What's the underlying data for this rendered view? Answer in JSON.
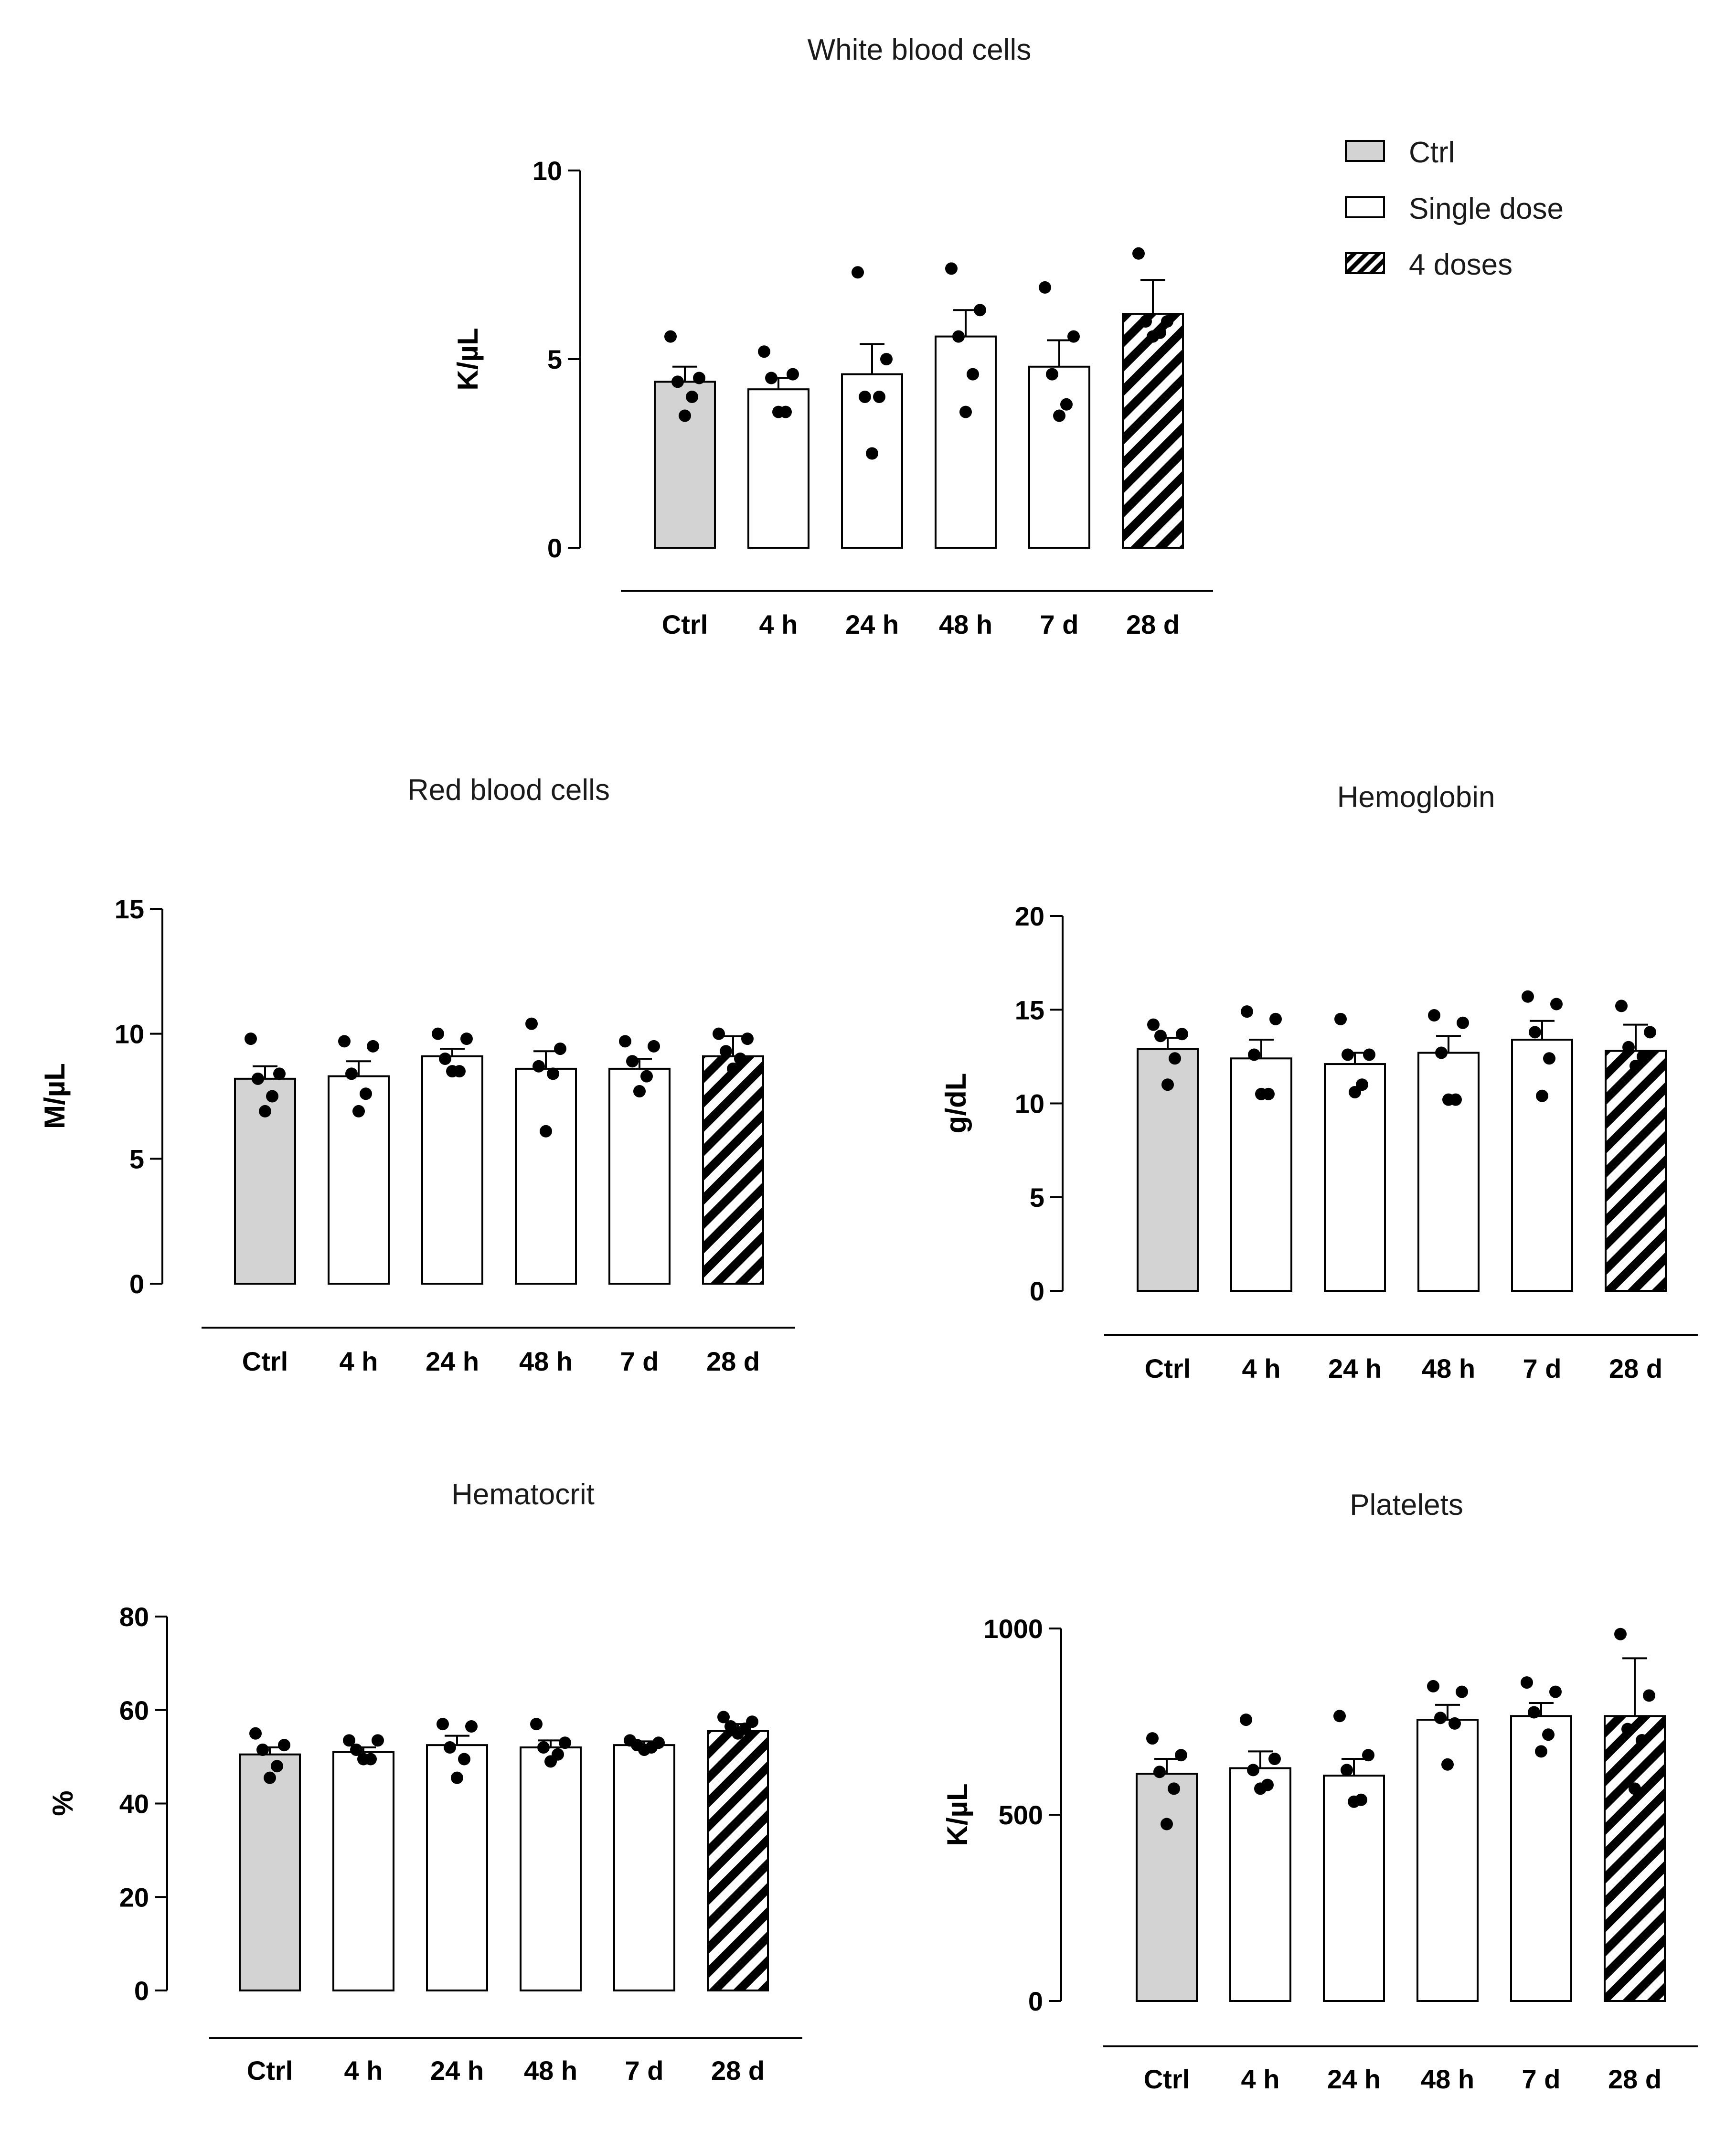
{
  "groups": [
    "Ctrl",
    "Single dose",
    "4 doses"
  ],
  "group_colors": {
    "Ctrl": "#d3d3d3",
    "Single dose": "#ffffff",
    "4 doses": "hatch"
  },
  "legend": [
    {
      "label": "Ctrl",
      "group": "Ctrl"
    },
    {
      "label": "Single dose",
      "group": "Single dose"
    },
    {
      "label": "4 doses",
      "group": "4 doses"
    }
  ],
  "chart_data": [
    {
      "type": "bar",
      "title": "White blood cells",
      "ylabel": "K/µL",
      "ylim": [
        0,
        10
      ],
      "yticks": [
        0,
        5,
        10
      ],
      "categories": [
        "Ctrl",
        "4 h",
        "24 h",
        "48 h",
        "7 d",
        "28 d"
      ],
      "bar_groups": [
        "Ctrl",
        "Single dose",
        "Single dose",
        "Single dose",
        "Single dose",
        "4 doses"
      ],
      "values": [
        4.4,
        4.2,
        4.6,
        5.6,
        4.8,
        6.2
      ],
      "sem": [
        0.4,
        0.3,
        0.8,
        0.7,
        0.7,
        0.9
      ],
      "points": [
        [
          5.6,
          4.5,
          4.4,
          4.0,
          3.5
        ],
        [
          5.2,
          4.6,
          4.5,
          3.6,
          3.6
        ],
        [
          7.3,
          5.0,
          4.0,
          4.0,
          2.5
        ],
        [
          7.4,
          6.3,
          5.6,
          4.6,
          3.6
        ],
        [
          6.9,
          5.6,
          4.6,
          3.8,
          3.5
        ],
        [
          7.8,
          6.0,
          6.0,
          5.7,
          5.6
        ]
      ]
    },
    {
      "type": "bar",
      "title": "Red blood cells",
      "ylabel": "M/µL",
      "ylim": [
        0,
        15
      ],
      "yticks": [
        0,
        5,
        10,
        15
      ],
      "categories": [
        "Ctrl",
        "4 h",
        "24 h",
        "48 h",
        "7 d",
        "28 d"
      ],
      "bar_groups": [
        "Ctrl",
        "Single dose",
        "Single dose",
        "Single dose",
        "Single dose",
        "4 doses"
      ],
      "values": [
        8.2,
        8.3,
        9.1,
        8.6,
        8.6,
        9.1
      ],
      "sem": [
        0.5,
        0.6,
        0.3,
        0.7,
        0.4,
        0.8
      ],
      "points": [
        [
          9.8,
          8.4,
          8.2,
          7.5,
          6.9
        ],
        [
          9.7,
          9.5,
          8.4,
          7.6,
          6.9
        ],
        [
          10.0,
          9.8,
          9.0,
          8.5,
          8.5
        ],
        [
          10.4,
          9.4,
          8.7,
          8.4,
          6.1
        ],
        [
          9.7,
          9.5,
          8.9,
          8.3,
          7.7
        ],
        [
          10.0,
          9.8,
          9.3,
          9.0,
          8.6
        ]
      ]
    },
    {
      "type": "bar",
      "title": "Hemoglobin",
      "ylabel": "g/dL",
      "ylim": [
        0,
        20
      ],
      "yticks": [
        0,
        5,
        10,
        15,
        20
      ],
      "categories": [
        "Ctrl",
        "4 h",
        "24 h",
        "48 h",
        "7 d",
        "28 d"
      ],
      "bar_groups": [
        "Ctrl",
        "Single dose",
        "Single dose",
        "Single dose",
        "Single dose",
        "4 doses"
      ],
      "values": [
        12.9,
        12.4,
        12.1,
        12.7,
        13.4,
        12.8
      ],
      "sem": [
        0.6,
        1.0,
        0.6,
        0.9,
        1.0,
        1.4
      ],
      "points": [
        [
          14.2,
          13.7,
          13.6,
          12.4,
          11.0
        ],
        [
          14.9,
          14.5,
          12.6,
          10.5,
          10.5
        ],
        [
          14.5,
          12.6,
          12.6,
          11.0,
          10.6
        ],
        [
          14.7,
          14.3,
          12.7,
          10.2,
          10.2
        ],
        [
          15.7,
          15.3,
          13.8,
          12.4,
          10.4
        ],
        [
          15.2,
          13.8,
          13.0,
          12.5,
          12.0
        ]
      ]
    },
    {
      "type": "bar",
      "title": "Hematocrit",
      "ylabel": "%",
      "ylim": [
        0,
        80
      ],
      "yticks": [
        0,
        20,
        40,
        60,
        80
      ],
      "categories": [
        "Ctrl",
        "4 h",
        "24 h",
        "48 h",
        "7 d",
        "28 d"
      ],
      "bar_groups": [
        "Ctrl",
        "Single dose",
        "Single dose",
        "Single dose",
        "Single dose",
        "4 doses"
      ],
      "values": [
        50.5,
        51.0,
        52.5,
        52.0,
        52.5,
        55.5
      ],
      "sem": [
        1.5,
        1.0,
        2.0,
        1.5,
        0.8,
        1.5
      ],
      "points": [
        [
          55.0,
          52.5,
          51.5,
          48.0,
          45.5
        ],
        [
          53.5,
          53.5,
          51.5,
          49.5,
          49.5
        ],
        [
          57.0,
          56.5,
          52.0,
          49.5,
          45.5
        ],
        [
          57.0,
          53.0,
          52.0,
          50.5,
          49.0
        ],
        [
          53.5,
          53.0,
          52.5,
          52.0,
          51.5
        ],
        [
          58.5,
          57.5,
          56.5,
          56.0,
          55.0
        ]
      ]
    },
    {
      "type": "bar",
      "title": "Platelets",
      "ylabel": "K/µL",
      "ylim": [
        0,
        1000
      ],
      "yticks": [
        0,
        500,
        1000
      ],
      "categories": [
        "Ctrl",
        "4 h",
        "24 h",
        "48 h",
        "7 d",
        "28 d"
      ],
      "bar_groups": [
        "Ctrl",
        "Single dose",
        "Single dose",
        "Single dose",
        "Single dose",
        "4 doses"
      ],
      "values": [
        610,
        625,
        605,
        755,
        765,
        765
      ],
      "sem": [
        40,
        45,
        45,
        40,
        35,
        155
      ],
      "points": [
        [
          705,
          660,
          615,
          570,
          475
        ],
        [
          755,
          650,
          620,
          580,
          570
        ],
        [
          765,
          660,
          620,
          540,
          535
        ],
        [
          845,
          830,
          760,
          745,
          635
        ],
        [
          855,
          830,
          775,
          715,
          670
        ],
        [
          985,
          820,
          730,
          700,
          570
        ]
      ]
    }
  ]
}
